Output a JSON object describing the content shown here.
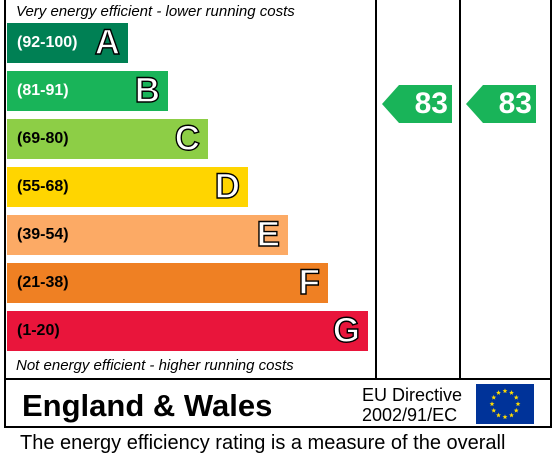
{
  "captions": {
    "top": "Very energy efficient - lower running costs",
    "bottom": "Not energy efficient - higher running costs"
  },
  "bands": [
    {
      "range": "(92-100)",
      "letter": "A",
      "color": "#008054",
      "text_dark": false
    },
    {
      "range": "(81-91)",
      "letter": "B",
      "color": "#19b459",
      "text_dark": false
    },
    {
      "range": "(69-80)",
      "letter": "C",
      "color": "#8dce46",
      "text_dark": true
    },
    {
      "range": "(55-68)",
      "letter": "D",
      "color": "#ffd500",
      "text_dark": true
    },
    {
      "range": "(39-54)",
      "letter": "E",
      "color": "#fcaa65",
      "text_dark": true
    },
    {
      "range": "(21-38)",
      "letter": "F",
      "color": "#ef8023",
      "text_dark": true
    },
    {
      "range": "(1-20)",
      "letter": "G",
      "color": "#e9153b",
      "text_dark": true
    }
  ],
  "chart_data": {
    "type": "bar",
    "categories": [
      "A",
      "B",
      "C",
      "D",
      "E",
      "F",
      "G"
    ],
    "ranges": [
      "92-100",
      "81-91",
      "69-80",
      "55-68",
      "39-54",
      "21-38",
      "1-20"
    ],
    "current_rating": 83,
    "potential_rating": 83,
    "current_band": "B",
    "potential_band": "B",
    "rating_color": "#19b459"
  },
  "ratings": {
    "current": "83",
    "potential": "83"
  },
  "footer": {
    "country": "England & Wales",
    "directive_line1": "EU Directive",
    "directive_line2": "2002/91/EC",
    "sentence": "The energy efficiency rating is a measure of the overall"
  }
}
